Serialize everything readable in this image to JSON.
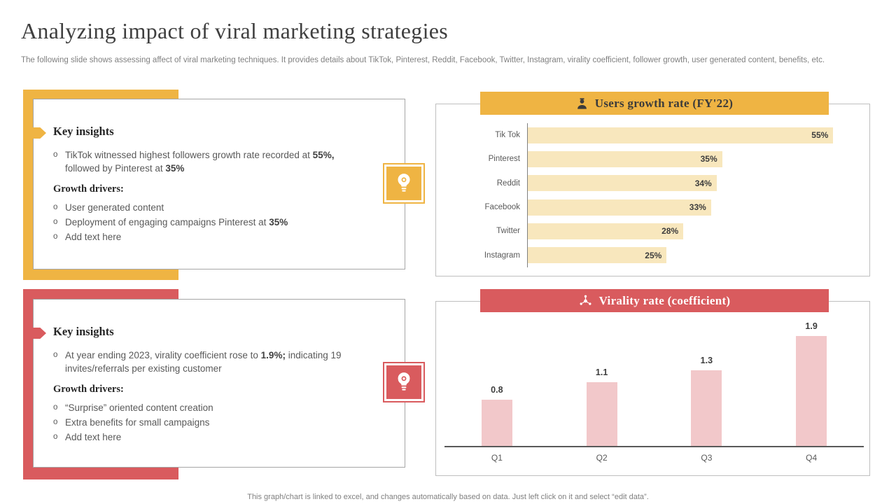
{
  "slide": {
    "title": "Analyzing impact of viral marketing strategies",
    "subtitle": "The following slide shows assessing affect of viral marketing techniques. It provides details about TikTok, Pinterest, Reddit, Facebook, Twitter,  Instagram, virality coefficient, follower growth, user generated content, benefits, etc.",
    "footer": "This graph/chart is linked to excel,  and changes automatically based on data. Just left click on it and select “edit data”."
  },
  "colors": {
    "yellow_accent": "#EFB443",
    "yellow_bar": "#F8E7BD",
    "red_accent": "#D95B5E",
    "red_bar": "#F2C8CA",
    "text_dark": "#3F3F3F",
    "text_gray": "#595959"
  },
  "insights_top": {
    "heading": "Key insights",
    "bullet_marker": "o",
    "bullet": {
      "pre": "TikTok witnessed highest followers growth rate recorded at ",
      "bold1": "55%,",
      "mid": " followed by Pinterest at ",
      "bold2": "35%"
    },
    "drivers_heading": "Growth drivers:",
    "driver1": "User generated content",
    "driver2_pre": "Deployment of engaging campaigns Pinterest at ",
    "driver2_bold": "35%",
    "driver3": "Add text here"
  },
  "insights_bottom": {
    "heading": "Key insights",
    "bullet_marker": "o",
    "bullet": {
      "pre": "At year ending 2023, virality coefficient rose to ",
      "bold": "1.9%;",
      "post": " indicating 19 invites/referrals per existing customer"
    },
    "drivers_heading": "Growth drivers:",
    "driver1": "“Surprise” oriented content creation",
    "driver2": "Extra benefits for small campaigns",
    "driver3": "Add text here"
  },
  "chart_data": [
    {
      "type": "bar",
      "orientation": "horizontal",
      "title": "Users growth rate (FY'22)",
      "categories": [
        "Tik Tok",
        "Pinterest",
        "Reddit",
        "Facebook",
        "Twitter",
        "Instagram"
      ],
      "values": [
        55,
        35,
        34,
        33,
        28,
        25
      ],
      "value_labels": [
        "55%",
        "35%",
        "34%",
        "33%",
        "28%",
        "25%"
      ],
      "xlim": [
        0,
        60
      ],
      "xlabel": "",
      "ylabel": "",
      "grid": false,
      "legend": false,
      "bar_color": "#F8E7BD",
      "header_color": "#EFB443"
    },
    {
      "type": "bar",
      "orientation": "vertical",
      "title": "Virality rate (coefficient)",
      "categories": [
        "Q1",
        "Q2",
        "Q3",
        "Q4"
      ],
      "values": [
        0.8,
        1.1,
        1.3,
        1.9
      ],
      "value_labels": [
        "0.8",
        "1.1",
        "1.3",
        "1.9"
      ],
      "ylim": [
        0,
        2.2
      ],
      "xlabel": "",
      "ylabel": "",
      "grid": false,
      "legend": false,
      "bar_color": "#F2C8CA",
      "header_color": "#D95B5E"
    }
  ]
}
